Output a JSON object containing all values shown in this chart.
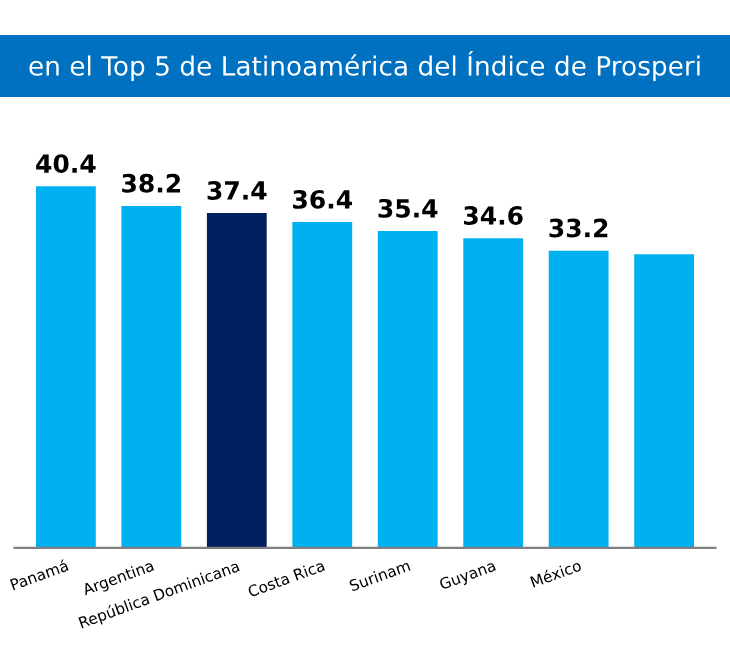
{
  "chart_data": {
    "type": "bar",
    "title": "en el Top 5 de Latinoamérica del Índice de Prosperi",
    "categories": [
      "Panamá",
      "Argentina",
      "República Dominicana",
      "Costa Rica",
      "Surinam",
      "Guyana",
      "México",
      null
    ],
    "values": [
      40.4,
      38.2,
      37.4,
      36.4,
      35.4,
      34.6,
      33.2,
      32.8
    ],
    "value_labels": [
      "40.4",
      "38.2",
      "37.4",
      "36.4",
      "35.4",
      "34.6",
      "33.2",
      null
    ],
    "colors": [
      "#00b0f0",
      "#00b0f0",
      "#002060",
      "#00b0f0",
      "#00b0f0",
      "#00b0f0",
      "#00b0f0",
      "#00b0f0"
    ],
    "grid": false,
    "legend": false
  }
}
